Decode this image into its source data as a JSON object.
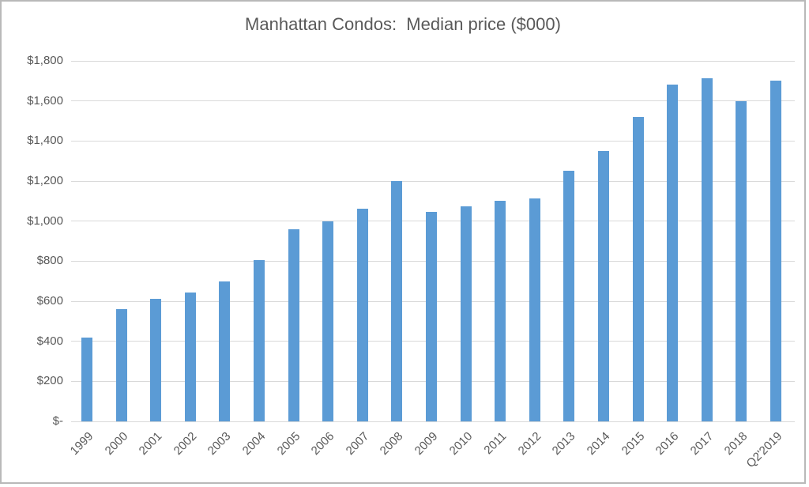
{
  "window": {
    "background_color": "#ffffff",
    "border_color": "#b9b9b9"
  },
  "chart_data": {
    "type": "bar",
    "title": "Manhattan Condos:  Median price ($000)",
    "xlabel": "",
    "ylabel": "",
    "categories": [
      "1999",
      "2000",
      "2001",
      "2002",
      "2003",
      "2004",
      "2005",
      "2006",
      "2007",
      "2008",
      "2009",
      "2010",
      "2011",
      "2012",
      "2013",
      "2014",
      "2015",
      "2016",
      "2017",
      "2018",
      "Q2'2019"
    ],
    "values": [
      420,
      560,
      610,
      645,
      700,
      805,
      960,
      1000,
      1060,
      1200,
      1045,
      1075,
      1100,
      1115,
      1250,
      1350,
      1520,
      1680,
      1715,
      1600,
      1700
    ],
    "ylim": [
      0,
      1800
    ],
    "ytick_values": [
      0,
      200,
      400,
      600,
      800,
      1000,
      1200,
      1400,
      1600,
      1800
    ],
    "ytick_labels": [
      "$-",
      "$200",
      "$400",
      "$600",
      "$800",
      "$1,000",
      "$1,200",
      "$1,400",
      "$1,600",
      "$1,800"
    ],
    "grid": true,
    "legend": "none",
    "bar_color": "#5b9bd5",
    "gridline_color": "#d9d9d9",
    "axis_label_color": "#595959",
    "title_color": "#595959"
  }
}
